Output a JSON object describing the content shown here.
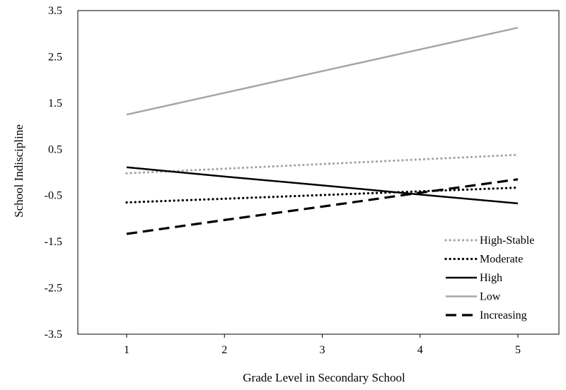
{
  "chart_data": {
    "type": "line",
    "title": "",
    "xlabel": "Grade Level in Secondary School",
    "ylabel": "School Indiscipline",
    "x": [
      1,
      2,
      3,
      4,
      5
    ],
    "x_tick_labels": [
      "1",
      "2",
      "3",
      "4",
      "5"
    ],
    "ylim": [
      -3.5,
      3.5
    ],
    "y_tick_labels": [
      "3.5",
      "2.5",
      "1.5",
      "0.5",
      "-0.5",
      "-1.5",
      "-2.5",
      "-3.5"
    ],
    "grid": false,
    "legend_position": "bottom-right",
    "series": [
      {
        "name": "High-Stable",
        "values": [
          -0.02,
          0.08,
          0.18,
          0.28,
          0.38
        ],
        "color": "#a6a6a6",
        "style": "dotted"
      },
      {
        "name": "Moderate",
        "values": [
          -0.65,
          -0.57,
          -0.49,
          -0.41,
          -0.33
        ],
        "color": "#000000",
        "style": "dotted"
      },
      {
        "name": "High",
        "values": [
          0.11,
          -0.09,
          -0.28,
          -0.48,
          -0.67
        ],
        "color": "#000000",
        "style": "solid"
      },
      {
        "name": "Low",
        "values": [
          1.25,
          1.72,
          2.19,
          2.66,
          3.13
        ],
        "color": "#a6a6a6",
        "style": "solid"
      },
      {
        "name": "Increasing",
        "values": [
          -1.33,
          -1.03,
          -0.74,
          -0.44,
          -0.15
        ],
        "color": "#000000",
        "style": "dashed"
      }
    ]
  }
}
